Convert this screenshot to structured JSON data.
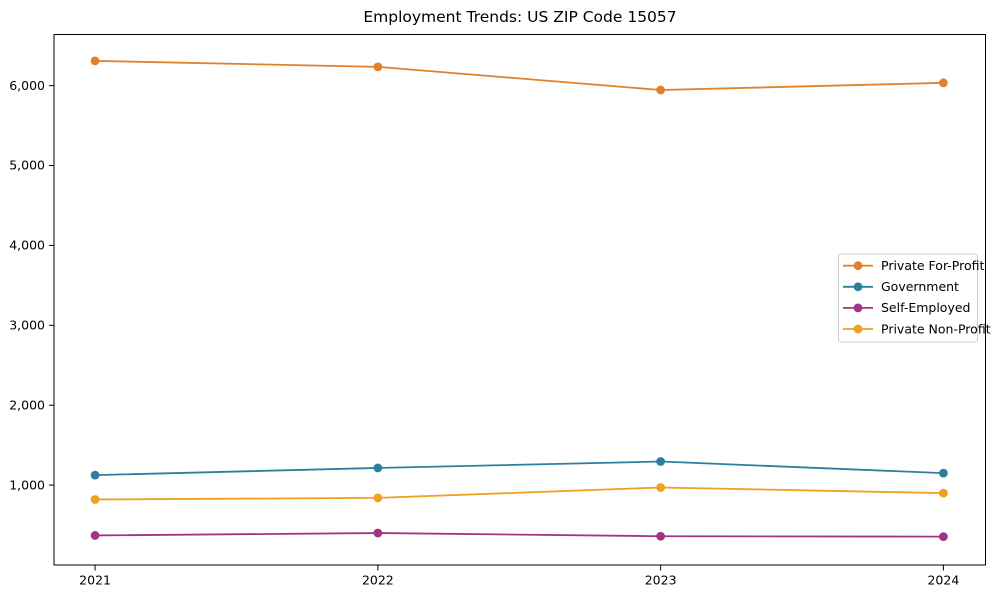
{
  "figure": {
    "background": "#ffffff",
    "spine_color": "#000000",
    "tick_color": "#000000"
  },
  "chart_data": {
    "type": "line",
    "title": "Employment Trends: US ZIP Code 15057",
    "xlabel": "",
    "ylabel": "",
    "x_categories": [
      "2021",
      "2022",
      "2023",
      "2024"
    ],
    "series": [
      {
        "name": "Private For-Profit",
        "color": "#e1812c",
        "values": [
          6310,
          6235,
          5945,
          6035
        ]
      },
      {
        "name": "Government",
        "color": "#2e7f9e",
        "values": [
          1125,
          1215,
          1295,
          1150
        ]
      },
      {
        "name": "Self-Employed",
        "color": "#a23485",
        "values": [
          370,
          400,
          360,
          355
        ]
      },
      {
        "name": "Private Non-Profit",
        "color": "#f0a01e",
        "values": [
          820,
          840,
          970,
          900
        ]
      }
    ],
    "ylim": [
      0,
      6640
    ],
    "yticks": [
      {
        "value": 1000,
        "label": "1,000"
      },
      {
        "value": 2000,
        "label": "2,000"
      },
      {
        "value": 3000,
        "label": "3,000"
      },
      {
        "value": 4000,
        "label": "4,000"
      },
      {
        "value": 5000,
        "label": "5,000"
      },
      {
        "value": 6000,
        "label": "6,000"
      }
    ],
    "grid": false,
    "legend": {
      "position": "center-right",
      "border_color": "#cccccc",
      "background": "#ffffff"
    },
    "marker": "circle"
  }
}
